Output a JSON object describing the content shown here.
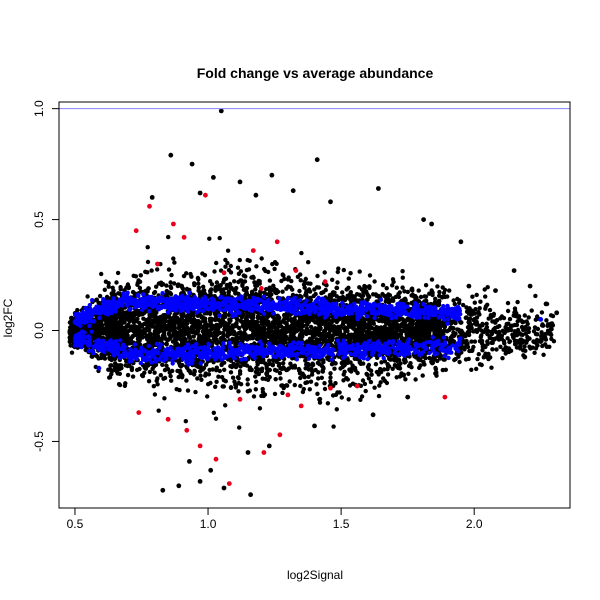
{
  "chart_data": {
    "type": "scatter",
    "title": "Fold change vs average abundance",
    "xlabel": "log2Signal",
    "ylabel": "log2FC",
    "xlim": [
      0.44,
      2.36
    ],
    "ylim": [
      -0.8,
      1.03
    ],
    "x_ticks": [
      0.5,
      1.0,
      1.5,
      2.0
    ],
    "x_tick_labels": [
      "0.5",
      "1.0",
      "1.5",
      "2.0"
    ],
    "y_ticks": [
      -0.5,
      0.0,
      0.5,
      1.0
    ],
    "y_tick_labels": [
      "-0.5",
      "0.0",
      "0.5",
      "1.0"
    ],
    "grid": false,
    "reference_line": {
      "y": 1.0,
      "color": "#8080ff"
    },
    "colors": {
      "background": "#000000",
      "red": "#e8001c",
      "blue": "#0000ff"
    },
    "series": [
      {
        "color": "#000000",
        "points": [
          [
            1.05,
            0.99
          ],
          [
            0.86,
            0.79
          ],
          [
            1.41,
            0.77
          ],
          [
            0.94,
            0.75
          ],
          [
            1.24,
            0.7
          ],
          [
            1.02,
            0.69
          ],
          [
            1.12,
            0.67
          ],
          [
            1.64,
            0.64
          ],
          [
            1.32,
            0.63
          ],
          [
            0.97,
            0.62
          ],
          [
            0.79,
            0.6
          ],
          [
            1.18,
            0.61
          ],
          [
            1.46,
            0.58
          ],
          [
            1.81,
            0.5
          ],
          [
            1.84,
            0.48
          ],
          [
            1.95,
            0.4
          ],
          [
            2.15,
            0.27
          ],
          [
            2.21,
            0.2
          ],
          [
            2.27,
            0.12
          ],
          [
            2.31,
            0.08
          ],
          [
            2.25,
            -0.05
          ],
          [
            2.19,
            -0.12
          ],
          [
            2.12,
            -0.08
          ],
          [
            2.05,
            -0.12
          ],
          [
            1.95,
            -0.08
          ],
          [
            1.88,
            0.15
          ],
          [
            1.98,
            0.2
          ],
          [
            2.08,
            0.18
          ],
          [
            0.89,
            -0.7
          ],
          [
            0.97,
            -0.68
          ],
          [
            1.06,
            -0.71
          ],
          [
            1.16,
            -0.74
          ],
          [
            0.83,
            -0.72
          ],
          [
            1.01,
            -0.63
          ],
          [
            1.15,
            -0.55
          ],
          [
            1.23,
            -0.52
          ],
          [
            1.4,
            -0.43
          ],
          [
            1.62,
            -0.38
          ],
          [
            1.75,
            -0.3
          ],
          [
            0.93,
            -0.59
          ]
        ]
      },
      {
        "color": "#e8001c",
        "points": [
          [
            0.99,
            0.61
          ],
          [
            0.78,
            0.56
          ],
          [
            0.87,
            0.48
          ],
          [
            0.91,
            0.42
          ],
          [
            1.17,
            0.36
          ],
          [
            1.26,
            0.4
          ],
          [
            1.33,
            0.27
          ],
          [
            1.44,
            0.22
          ],
          [
            0.73,
            0.45
          ],
          [
            0.81,
            0.3
          ],
          [
            1.06,
            0.26
          ],
          [
            1.2,
            0.19
          ],
          [
            0.85,
            -0.4
          ],
          [
            0.92,
            -0.45
          ],
          [
            1.03,
            -0.58
          ],
          [
            1.08,
            -0.69
          ],
          [
            0.97,
            -0.52
          ],
          [
            1.21,
            -0.55
          ],
          [
            1.27,
            -0.47
          ],
          [
            1.35,
            -0.34
          ],
          [
            1.46,
            -0.26
          ],
          [
            1.56,
            -0.25
          ],
          [
            1.89,
            -0.3
          ],
          [
            0.74,
            -0.37
          ],
          [
            1.12,
            -0.31
          ],
          [
            1.3,
            -0.29
          ]
        ]
      },
      {
        "color": "#0000ff",
        "points": [
          [
            0.5,
            0.04
          ],
          [
            0.53,
            0.06
          ],
          [
            0.58,
            0.1
          ],
          [
            0.63,
            0.12
          ],
          [
            0.7,
            0.14
          ],
          [
            0.78,
            0.15
          ],
          [
            0.87,
            0.14
          ],
          [
            0.96,
            0.13
          ],
          [
            1.05,
            0.12
          ],
          [
            1.15,
            0.1
          ],
          [
            1.25,
            0.11
          ],
          [
            1.35,
            0.11
          ],
          [
            1.45,
            0.12
          ],
          [
            1.55,
            0.1
          ],
          [
            1.65,
            0.09
          ],
          [
            1.72,
            0.08
          ],
          [
            1.81,
            0.08
          ],
          [
            1.92,
            0.09
          ],
          [
            2.25,
            0.05
          ],
          [
            0.52,
            -0.03
          ],
          [
            0.59,
            -0.17
          ],
          [
            0.66,
            -0.1
          ],
          [
            0.75,
            -0.09
          ],
          [
            0.84,
            -0.11
          ],
          [
            0.93,
            -0.13
          ],
          [
            1.03,
            -0.12
          ],
          [
            1.12,
            -0.1
          ],
          [
            1.22,
            -0.09
          ],
          [
            1.32,
            -0.11
          ],
          [
            1.42,
            -0.12
          ],
          [
            1.52,
            -0.1
          ],
          [
            1.62,
            -0.09
          ],
          [
            1.73,
            -0.08
          ],
          [
            1.85,
            -0.07
          ]
        ]
      }
    ]
  }
}
